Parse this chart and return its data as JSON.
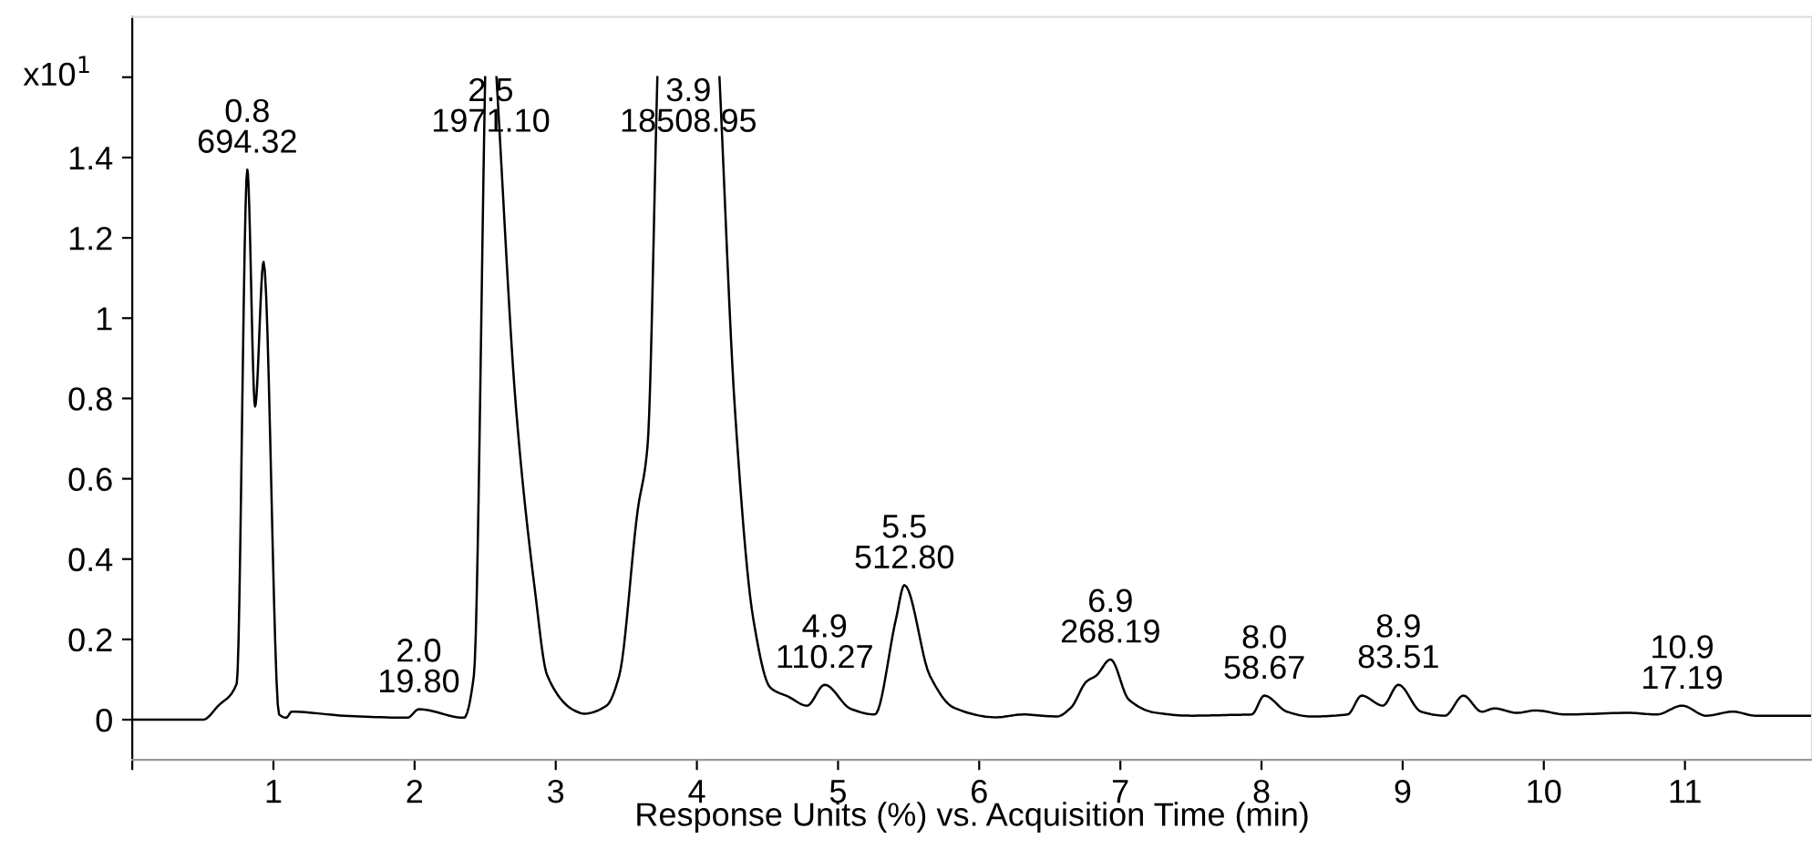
{
  "chart_data": {
    "type": "line",
    "xlabel": "Response Units (%) vs. Acquisition Time (min)",
    "ylabel": "x10$^{1}$",
    "xlim": [
      0,
      11.9
    ],
    "ylim": [
      -0.1,
      1.75
    ],
    "xticks": [
      {
        "value": 0,
        "label": null
      },
      1,
      2,
      3,
      4,
      5,
      6,
      7,
      8,
      9,
      10,
      11
    ],
    "yticks": [
      0,
      0.2,
      0.4,
      0.6,
      0.8,
      1,
      1.2,
      1.4,
      {
        "value": 1.6,
        "label": null
      }
    ],
    "grid": false,
    "legend": false,
    "series": [
      {
        "color": "#000000",
        "x": [
          0,
          0.5,
          0.61,
          0.74,
          0.815,
          0.87,
          0.93,
          1.04,
          1.09,
          1.13,
          1.5,
          1.95,
          2.03,
          2.35,
          2.42,
          2.5,
          2.54,
          2.58,
          2.72,
          2.85,
          2.94,
          3.15,
          3.2,
          3.36,
          3.45,
          3.58,
          3.65,
          3.72,
          3.94,
          4.16,
          4.27,
          4.4,
          4.52,
          4.65,
          4.78,
          4.905,
          5.09,
          5.26,
          5.41,
          5.47,
          5.65,
          5.82,
          6.12,
          6.31,
          6.55,
          6.65,
          6.76,
          6.83,
          6.93,
          7.06,
          7.24,
          7.5,
          7.8,
          7.93,
          8.02,
          8.18,
          8.35,
          8.61,
          8.71,
          8.86,
          8.97,
          9.13,
          9.3,
          9.43,
          9.56,
          9.65,
          9.81,
          9.94,
          10.16,
          10.6,
          10.8,
          10.98,
          11.15,
          11.34,
          11.5,
          11.9
        ],
        "values": [
          0,
          0,
          0.035,
          0.09,
          1.37,
          0.78,
          1.14,
          0.013,
          0.005,
          0.02,
          0.01,
          0.005,
          0.026,
          0.005,
          0.11,
          1.6,
          null,
          1.6,
          0.77,
          0.33,
          0.11,
          0.02,
          0.015,
          0.035,
          0.11,
          0.52,
          0.68,
          1.6,
          null,
          1.6,
          0.77,
          0.25,
          0.08,
          0.057,
          0.035,
          0.087,
          0.027,
          0.013,
          0.25,
          0.335,
          0.11,
          0.03,
          0.006,
          0.013,
          0.008,
          0.03,
          0.095,
          0.11,
          0.15,
          0.05,
          0.018,
          0.01,
          0.012,
          0.013,
          0.06,
          0.02,
          0.008,
          0.013,
          0.06,
          0.035,
          0.087,
          0.02,
          0.01,
          0.06,
          0.02,
          0.028,
          0.017,
          0.023,
          0.013,
          0.017,
          0.013,
          0.035,
          0.01,
          0.02,
          0.01,
          0.01
        ]
      }
    ],
    "annotations": [
      {
        "text": "0.8\n694.32",
        "x": 0.815,
        "y": 1.37
      },
      {
        "text": "2.0\n19.80",
        "x": 2.03,
        "y": 0.026
      },
      {
        "text": "2.5\n1971.10",
        "x": 2.5,
        "y": 1.6
      },
      {
        "text": "3.9\n18508.95",
        "x": 3.72,
        "y": 1.6
      },
      {
        "text": "4.9\n110.27",
        "x": 4.905,
        "y": 0.087
      },
      {
        "text": "5.5\n512.80",
        "x": 5.47,
        "y": 0.335
      },
      {
        "text": "6.9\n268.19",
        "x": 6.93,
        "y": 0.15
      },
      {
        "text": "8.0\n58.67",
        "x": 8.02,
        "y": 0.06
      },
      {
        "text": "8.9\n83.51",
        "x": 8.97,
        "y": 0.087
      },
      {
        "text": "10.9\n17.19",
        "x": 10.98,
        "y": 0.035
      }
    ]
  }
}
